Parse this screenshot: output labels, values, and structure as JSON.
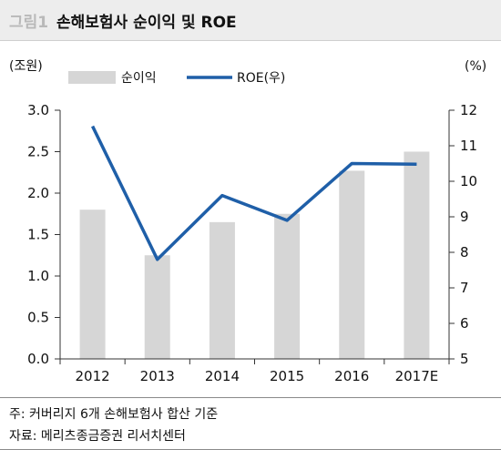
{
  "header": {
    "label": "그림1",
    "title": "손해보험사 순이익 및 ROE"
  },
  "chart_data": {
    "type": "bar",
    "categories": [
      "2012",
      "2013",
      "2014",
      "2015",
      "2016",
      "2017E"
    ],
    "series": [
      {
        "name": "순이익",
        "type": "bar",
        "axis": "left",
        "color": "#d6d6d6",
        "values": [
          1.8,
          1.25,
          1.65,
          1.75,
          2.27,
          2.5
        ]
      },
      {
        "name": "ROE(우)",
        "type": "line",
        "axis": "right",
        "color": "#1f5fa8",
        "values": [
          11.55,
          7.8,
          9.6,
          8.9,
          10.5,
          10.48
        ]
      }
    ],
    "ylabel_left": "(조원)",
    "ylabel_right": "(%)",
    "ylim_left": [
      0,
      3.0
    ],
    "ylim_right": [
      5,
      12
    ],
    "yticks_left": [
      "0.0",
      "0.5",
      "1.0",
      "1.5",
      "2.0",
      "2.5",
      "3.0"
    ],
    "yticks_right": [
      "5",
      "6",
      "7",
      "8",
      "9",
      "10",
      "11",
      "12"
    ],
    "grid": false,
    "legend_position": "top"
  },
  "notes": {
    "note": "주: 커버리지 6개 손해보험사 합산 기준",
    "source": "자료: 메리츠종금증권 리서치센터"
  }
}
